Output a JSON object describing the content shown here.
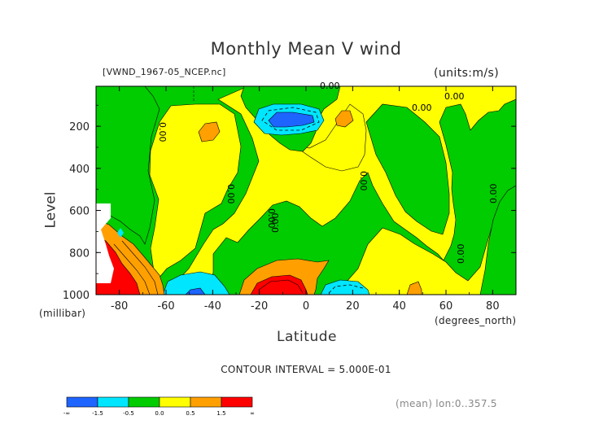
{
  "chart_data": {
    "type": "heatmap",
    "title": "Monthly Mean V wind",
    "file_label": "[VWND_1967-05_NCEP.nc]",
    "units_label": "(units:m/s)",
    "xlabel": "Latitude",
    "x_units": "(degrees_north)",
    "ylabel": "Level",
    "y_units": "(millibar)",
    "xlim": [
      -90,
      90
    ],
    "ylim": [
      1000,
      10
    ],
    "x_ticks": [
      "-80",
      "-60",
      "-40",
      "-20",
      "0",
      "20",
      "40",
      "60",
      "80"
    ],
    "x_tick_values": [
      -80,
      -60,
      -40,
      -20,
      0,
      20,
      40,
      60,
      80
    ],
    "y_ticks": [
      "200",
      "400",
      "600",
      "800",
      "1000"
    ],
    "y_tick_values": [
      200,
      400,
      600,
      800,
      1000
    ],
    "contour_interval_text": "CONTOUR INTERVAL = 5.000E-01",
    "contour_labels": [
      "0.00",
      "0.00",
      "0.00",
      "0.00",
      "0.00",
      "0.00",
      "0.00",
      "0.00",
      "0.00",
      "0.00"
    ],
    "colorbar": {
      "colors": [
        "#1e64ff",
        "#00e6ff",
        "#00cc00",
        "#ffff00",
        "#ffa000",
        "#ff0000"
      ],
      "tick_labels": [
        "-∞",
        "-1.5",
        "-0.5",
        "0.0",
        "0.5",
        "1.5",
        "∞"
      ]
    },
    "footnote": "(mean) lon:0..357.5"
  }
}
